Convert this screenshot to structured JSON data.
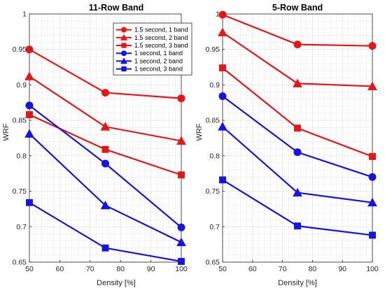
{
  "colors": {
    "red": "#e81416",
    "blue": "#1414e6",
    "grid": "#e6e6e6",
    "axis": "#262626"
  },
  "chart_data": [
    {
      "type": "line",
      "title": "11-Row Band",
      "xlabel": "Density [%]",
      "ylabel": "WRF",
      "xlim": [
        50,
        100
      ],
      "ylim": [
        0.65,
        1.0
      ],
      "xticks": [
        "50",
        "60",
        "70",
        "80",
        "90",
        "100"
      ],
      "yticks": [
        "0.65",
        "0.7",
        "0.75",
        "0.8",
        "0.85",
        "0.9",
        "0.95",
        "1"
      ],
      "grid": "on",
      "legend_location": "top-right",
      "x": [
        50,
        75,
        100
      ],
      "series": [
        {
          "name": "1.5 second, 1 band",
          "color": "red",
          "marker": "circle",
          "values": [
            0.95,
            0.889,
            0.881
          ]
        },
        {
          "name": "1.5 second, 2 band",
          "color": "red",
          "marker": "triangle",
          "values": [
            0.912,
            0.841,
            0.821
          ]
        },
        {
          "name": "1.5 second, 3 band",
          "color": "red",
          "marker": "square",
          "values": [
            0.858,
            0.809,
            0.773
          ]
        },
        {
          "name": "1 second, 1 band",
          "color": "blue",
          "marker": "circle",
          "values": [
            0.871,
            0.789,
            0.699
          ]
        },
        {
          "name": "1 second, 2 band",
          "color": "blue",
          "marker": "triangle",
          "values": [
            0.831,
            0.73,
            0.678
          ]
        },
        {
          "name": "1 second, 3 band",
          "color": "blue",
          "marker": "square",
          "values": [
            0.734,
            0.67,
            0.651
          ]
        }
      ]
    },
    {
      "type": "line",
      "title": "5-Row Band",
      "xlabel": "Density [%]",
      "ylabel": "WRF",
      "xlim": [
        50,
        100
      ],
      "ylim": [
        0.65,
        1.0
      ],
      "xticks": [
        "50",
        "60",
        "70",
        "80",
        "90",
        "100"
      ],
      "yticks": [
        "0.65",
        "0.7",
        "0.75",
        "0.8",
        "0.85",
        "0.9",
        "0.95",
        "1"
      ],
      "grid": "on",
      "x": [
        50,
        75,
        100
      ],
      "series": [
        {
          "name": "1.5 second, 1 band",
          "color": "red",
          "marker": "circle",
          "values": [
            0.999,
            0.957,
            0.955
          ]
        },
        {
          "name": "1.5 second, 2 band",
          "color": "red",
          "marker": "triangle",
          "values": [
            0.974,
            0.902,
            0.898
          ]
        },
        {
          "name": "1.5 second, 3 band",
          "color": "red",
          "marker": "square",
          "values": [
            0.924,
            0.839,
            0.799
          ]
        },
        {
          "name": "1 second, 1 band",
          "color": "blue",
          "marker": "circle",
          "values": [
            0.884,
            0.805,
            0.77
          ]
        },
        {
          "name": "1 second, 2 band",
          "color": "blue",
          "marker": "triangle",
          "values": [
            0.841,
            0.748,
            0.734
          ]
        },
        {
          "name": "1 second, 3 band",
          "color": "blue",
          "marker": "square",
          "values": [
            0.766,
            0.701,
            0.688
          ]
        }
      ]
    }
  ]
}
